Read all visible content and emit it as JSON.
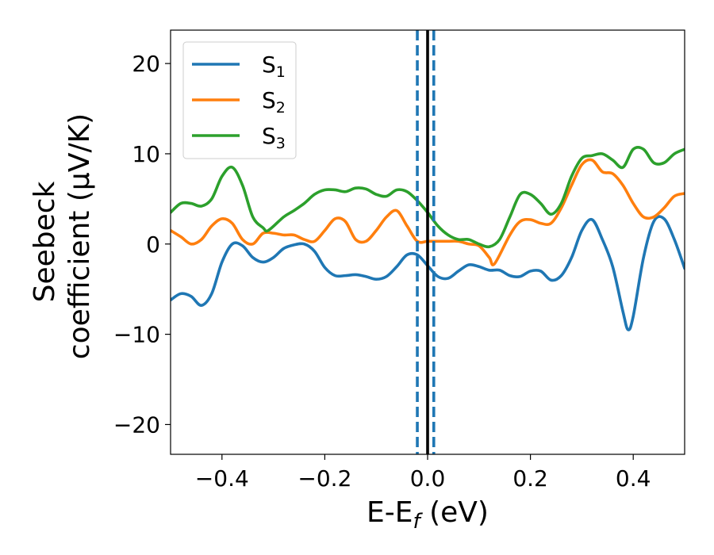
{
  "chart_data": {
    "type": "line",
    "xlabel": "E-E",
    "xlabel_sub": "f",
    "xlabel_unit": " (eV)",
    "ylabel_line1": "Seebeck",
    "ylabel_line2": "coefficient  (μV/K)",
    "xlim": [
      -0.5,
      0.5
    ],
    "ylim": [
      -23.3,
      23.7
    ],
    "xticks": [
      -0.4,
      -0.2,
      0.0,
      0.2,
      0.4
    ],
    "xtick_labels": [
      "−0.4",
      "−0.2",
      "0.0",
      "0.2",
      "0.4"
    ],
    "yticks": [
      -20,
      -10,
      0,
      10,
      20
    ],
    "ytick_labels": [
      "−20",
      "−10",
      "0",
      "10",
      "20"
    ],
    "grid": false,
    "legend_position": "top-left",
    "vertical_lines": [
      {
        "x": -0.02,
        "style": "dashed",
        "color": "#1f77b4"
      },
      {
        "x": 0.0,
        "style": "solid",
        "color": "#000000"
      },
      {
        "x": 0.012,
        "style": "dashed",
        "color": "#1f77b4"
      }
    ],
    "series": [
      {
        "name": "S",
        "sub": "1",
        "color": "#1f77b4",
        "x": [
          -0.5,
          -0.48,
          -0.46,
          -0.44,
          -0.42,
          -0.4,
          -0.38,
          -0.36,
          -0.34,
          -0.32,
          -0.3,
          -0.28,
          -0.26,
          -0.24,
          -0.22,
          -0.2,
          -0.18,
          -0.16,
          -0.14,
          -0.12,
          -0.1,
          -0.08,
          -0.06,
          -0.04,
          -0.02,
          0.0,
          0.02,
          0.04,
          0.06,
          0.08,
          0.1,
          0.12,
          0.14,
          0.16,
          0.18,
          0.2,
          0.22,
          0.24,
          0.26,
          0.28,
          0.3,
          0.32,
          0.34,
          0.36,
          0.38,
          0.39,
          0.4,
          0.42,
          0.44,
          0.46,
          0.48,
          0.5
        ],
        "y": [
          -6.2,
          -5.5,
          -5.8,
          -6.8,
          -5.5,
          -2.0,
          0.0,
          -0.2,
          -1.5,
          -2.0,
          -1.5,
          -0.5,
          -0.1,
          0.0,
          -0.8,
          -2.6,
          -3.5,
          -3.5,
          -3.4,
          -3.6,
          -3.9,
          -3.6,
          -2.5,
          -1.2,
          -1.2,
          -2.4,
          -3.6,
          -3.8,
          -3.0,
          -2.3,
          -2.5,
          -2.9,
          -2.9,
          -3.5,
          -3.6,
          -3.0,
          -3.0,
          -4.0,
          -3.5,
          -1.5,
          1.5,
          2.7,
          0.5,
          -2.5,
          -7.5,
          -9.5,
          -8.0,
          -1.5,
          2.5,
          2.8,
          0.5,
          -2.7
        ]
      },
      {
        "name": "S",
        "sub": "2",
        "color": "#ff7f0e",
        "x": [
          -0.5,
          -0.48,
          -0.46,
          -0.44,
          -0.42,
          -0.4,
          -0.38,
          -0.36,
          -0.34,
          -0.32,
          -0.3,
          -0.28,
          -0.26,
          -0.24,
          -0.22,
          -0.2,
          -0.18,
          -0.16,
          -0.14,
          -0.12,
          -0.1,
          -0.08,
          -0.06,
          -0.04,
          -0.02,
          0.0,
          0.02,
          0.04,
          0.06,
          0.08,
          0.1,
          0.12,
          0.13,
          0.16,
          0.18,
          0.2,
          0.22,
          0.24,
          0.26,
          0.28,
          0.3,
          0.32,
          0.34,
          0.36,
          0.38,
          0.4,
          0.42,
          0.44,
          0.46,
          0.48,
          0.5
        ],
        "y": [
          1.5,
          0.8,
          0.0,
          0.5,
          2.0,
          2.8,
          2.3,
          0.5,
          0.0,
          1.2,
          1.2,
          1.0,
          1.0,
          0.5,
          0.3,
          1.5,
          2.8,
          2.5,
          0.5,
          0.3,
          1.5,
          3.0,
          3.7,
          2.0,
          0.3,
          0.3,
          0.3,
          0.3,
          0.3,
          0.0,
          -0.2,
          -1.5,
          -2.2,
          1.0,
          2.5,
          2.7,
          2.3,
          2.3,
          4.0,
          6.5,
          8.8,
          9.3,
          8.0,
          7.8,
          6.5,
          4.5,
          3.0,
          3.0,
          4.0,
          5.3,
          5.6
        ]
      },
      {
        "name": "S",
        "sub": "3",
        "color": "#2ca02c",
        "x": [
          -0.5,
          -0.48,
          -0.46,
          -0.44,
          -0.42,
          -0.4,
          -0.38,
          -0.36,
          -0.34,
          -0.32,
          -0.31,
          -0.28,
          -0.26,
          -0.24,
          -0.22,
          -0.2,
          -0.18,
          -0.16,
          -0.14,
          -0.12,
          -0.1,
          -0.08,
          -0.06,
          -0.04,
          -0.02,
          0.0,
          0.02,
          0.04,
          0.06,
          0.08,
          0.1,
          0.12,
          0.14,
          0.16,
          0.18,
          0.2,
          0.22,
          0.24,
          0.26,
          0.28,
          0.3,
          0.32,
          0.34,
          0.36,
          0.38,
          0.4,
          0.42,
          0.44,
          0.46,
          0.48,
          0.5
        ],
        "y": [
          3.5,
          4.5,
          4.5,
          4.2,
          5.0,
          7.5,
          8.5,
          6.5,
          3.0,
          1.8,
          1.5,
          3.0,
          3.7,
          4.5,
          5.5,
          6.0,
          6.0,
          5.8,
          6.2,
          6.1,
          5.5,
          5.3,
          6.0,
          5.8,
          4.8,
          3.5,
          2.0,
          1.0,
          0.5,
          0.5,
          0.0,
          -0.3,
          0.5,
          3.0,
          5.5,
          5.5,
          4.5,
          3.3,
          4.5,
          7.5,
          9.5,
          9.8,
          10.0,
          9.3,
          8.5,
          10.5,
          10.5,
          9.0,
          9.0,
          10.0,
          10.5
        ]
      }
    ]
  }
}
